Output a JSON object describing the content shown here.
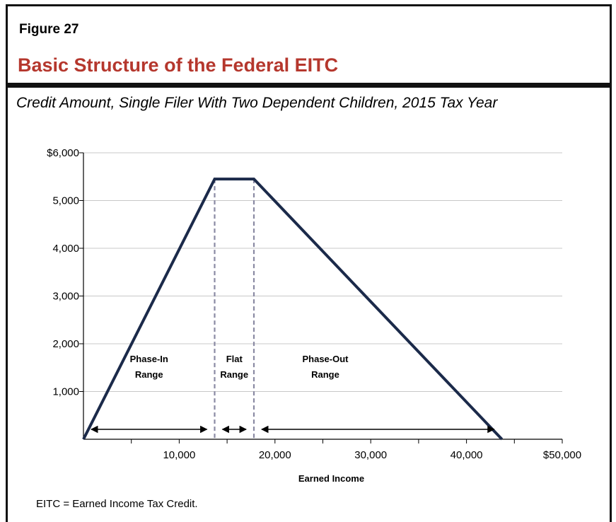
{
  "figure": {
    "label": "Figure 27",
    "title": "Basic Structure of the Federal EITC",
    "subtitle": "Credit Amount, Single Filer With Two Dependent Children, 2015 Tax Year",
    "footnote": "EITC = Earned Income Tax Credit."
  },
  "colors": {
    "title": "#b5372d",
    "line": "#1b2a4a",
    "dashed": "#8a8aa3",
    "grid": "#c8c8c8"
  },
  "chart_data": {
    "type": "line",
    "title": "",
    "xlabel": "Earned Income",
    "ylabel": "",
    "xlim": [
      0,
      50000
    ],
    "ylim": [
      0,
      6000
    ],
    "y_ticks": [
      {
        "value": 6000,
        "label": "$6,000"
      },
      {
        "value": 5000,
        "label": "5,000"
      },
      {
        "value": 4000,
        "label": "4,000"
      },
      {
        "value": 3000,
        "label": "3,000"
      },
      {
        "value": 2000,
        "label": "2,000"
      },
      {
        "value": 1000,
        "label": "1,000"
      }
    ],
    "x_ticks": [
      {
        "value": 10000,
        "label": "10,000"
      },
      {
        "value": 20000,
        "label": "20,000"
      },
      {
        "value": 30000,
        "label": "30,000"
      },
      {
        "value": 40000,
        "label": "40,000"
      },
      {
        "value": 50000,
        "label": "$50,000"
      }
    ],
    "x_minor_ticks": [
      5000,
      15000,
      25000,
      35000,
      45000
    ],
    "grid": true,
    "series": [
      {
        "x": [
          0,
          13700,
          17800,
          43700
        ],
        "y": [
          0,
          5450,
          5450,
          0
        ]
      }
    ],
    "reference_lines": [
      13700,
      17800
    ],
    "ranges": [
      {
        "line1": "Phase-In",
        "line2": "Range",
        "x_start": 0,
        "x_end": 13700
      },
      {
        "line1": "Flat",
        "line2": "Range",
        "x_start": 13700,
        "x_end": 17800
      },
      {
        "line1": "Phase-Out",
        "line2": "Range",
        "x_start": 17800,
        "x_end": 43700
      }
    ]
  }
}
